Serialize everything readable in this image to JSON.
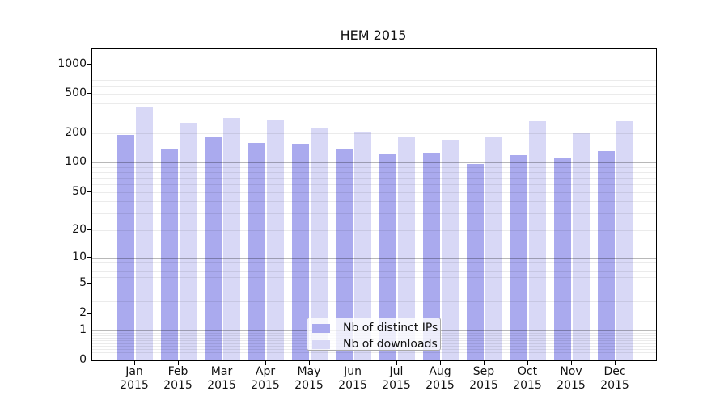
{
  "chart_data": {
    "type": "bar",
    "title": "HEM 2015",
    "categories": [
      "Jan",
      "Feb",
      "Mar",
      "Apr",
      "May",
      "Jun",
      "Jul",
      "Aug",
      "Sep",
      "Oct",
      "Nov",
      "Dec"
    ],
    "category_year": "2015",
    "series": [
      {
        "name": "Nb of distinct IPs",
        "color": "#aaaaee",
        "values": [
          192,
          136,
          181,
          159,
          155,
          138,
          123,
          125,
          97,
          120,
          111,
          130
        ]
      },
      {
        "name": "Nb of downloads",
        "color": "#d8d8f6",
        "values": [
          363,
          253,
          283,
          276,
          228,
          208,
          183,
          172,
          180,
          266,
          199,
          266
        ]
      }
    ],
    "yscale": "log1p",
    "ylim": [
      0,
      1420
    ],
    "yticks": [
      0,
      1,
      2,
      5,
      10,
      20,
      50,
      100,
      200,
      500,
      1000
    ],
    "grid": "both",
    "legend_position": "lower-center"
  }
}
